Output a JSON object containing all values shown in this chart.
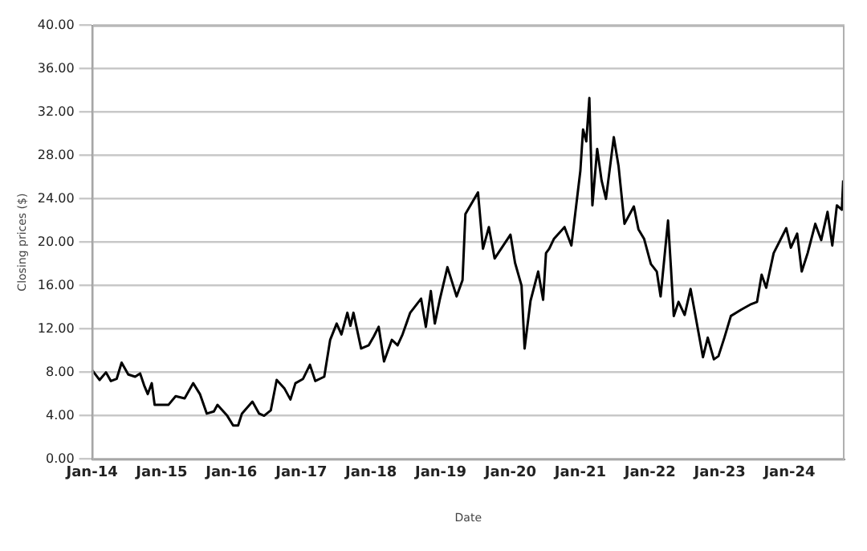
{
  "chart_data": {
    "type": "line",
    "xlabel": "Date",
    "ylabel": "Closing prices ($)",
    "x": [
      "2014-01-02",
      "2014-02-10",
      "2014-03-15",
      "2014-04-10",
      "2014-05-10",
      "2014-06-05",
      "2014-07-10",
      "2014-08-15",
      "2014-09-10",
      "2014-10-01",
      "2014-10-20",
      "2014-11-10",
      "2014-11-25",
      "2015-02-05",
      "2015-03-15",
      "2015-05-01",
      "2015-06-15",
      "2015-07-20",
      "2015-08-25",
      "2015-10-01",
      "2015-10-20",
      "2015-12-10",
      "2016-01-10",
      "2016-02-05",
      "2016-02-25",
      "2016-04-20",
      "2016-05-25",
      "2016-06-20",
      "2016-07-25",
      "2016-08-25",
      "2016-10-05",
      "2016-11-05",
      "2016-12-01",
      "2017-01-10",
      "2017-02-15",
      "2017-03-15",
      "2017-05-01",
      "2017-06-01",
      "2017-07-05",
      "2017-07-30",
      "2017-08-30",
      "2017-09-15",
      "2017-10-01",
      "2017-11-10",
      "2017-12-20",
      "2018-01-15",
      "2018-02-10",
      "2018-03-10",
      "2018-04-20",
      "2018-05-20",
      "2018-06-15",
      "2018-07-25",
      "2018-09-20",
      "2018-10-15",
      "2018-11-10",
      "2018-12-01",
      "2018-12-28",
      "2019-02-05",
      "2019-03-25",
      "2019-04-25",
      "2019-05-10",
      "2019-07-15",
      "2019-08-10",
      "2019-09-10",
      "2019-10-10",
      "2020-01-01",
      "2020-01-25",
      "2020-02-28",
      "2020-03-15",
      "2020-04-15",
      "2020-05-25",
      "2020-06-20",
      "2020-07-05",
      "2020-07-22",
      "2020-08-15",
      "2020-10-10",
      "2020-11-15",
      "2021-01-01",
      "2021-01-15",
      "2021-02-01",
      "2021-02-17",
      "2021-03-05",
      "2021-03-30",
      "2021-04-22",
      "2021-05-15",
      "2021-06-25",
      "2021-07-20",
      "2021-08-20",
      "2021-10-08",
      "2021-11-01",
      "2021-12-01",
      "2022-01-05",
      "2022-02-05",
      "2022-02-25",
      "2022-04-05",
      "2022-04-20",
      "2022-05-05",
      "2022-05-30",
      "2022-07-01",
      "2022-08-01",
      "2022-09-05",
      "2022-10-05",
      "2022-10-30",
      "2022-12-01",
      "2022-12-25",
      "2023-01-25",
      "2023-02-28",
      "2023-04-25",
      "2023-06-15",
      "2023-07-15",
      "2023-08-08",
      "2023-09-01",
      "2023-10-10",
      "2023-12-15",
      "2024-01-08",
      "2024-02-10",
      "2024-03-05",
      "2024-04-05",
      "2024-05-15",
      "2024-06-15",
      "2024-07-18",
      "2024-08-12",
      "2024-09-05",
      "2024-10-01",
      "2024-10-08"
    ],
    "series": [
      {
        "color": "#000000",
        "values": [
          8.2,
          7.3,
          8.0,
          7.2,
          7.4,
          8.9,
          7.8,
          7.6,
          7.9,
          6.8,
          6.0,
          7.0,
          5.0,
          5.0,
          5.8,
          5.6,
          7.0,
          6.0,
          4.2,
          4.4,
          5.0,
          4.0,
          3.1,
          3.1,
          4.2,
          5.3,
          4.2,
          4.0,
          4.5,
          7.3,
          6.5,
          5.5,
          7.0,
          7.4,
          8.7,
          7.2,
          7.6,
          11.0,
          12.5,
          11.5,
          13.5,
          12.3,
          13.5,
          10.2,
          10.5,
          11.3,
          12.2,
          9.0,
          11.0,
          10.5,
          11.5,
          13.5,
          14.8,
          12.2,
          15.5,
          12.5,
          14.8,
          17.7,
          15.0,
          16.5,
          22.6,
          24.6,
          19.4,
          21.4,
          18.5,
          20.7,
          18.1,
          16.0,
          10.2,
          14.6,
          17.3,
          14.7,
          19.0,
          19.4,
          20.3,
          21.4,
          19.7,
          26.6,
          30.4,
          29.3,
          33.3,
          23.4,
          28.6,
          25.7,
          24.0,
          29.7,
          27.0,
          21.7,
          23.3,
          21.2,
          20.3,
          18.0,
          17.3,
          15.0,
          22.0,
          17.7,
          13.2,
          14.5,
          13.3,
          15.7,
          12.3,
          9.4,
          11.2,
          9.2,
          9.5,
          11.2,
          13.2,
          13.8,
          14.3,
          14.5,
          17.0,
          15.8,
          19.0,
          21.3,
          19.5,
          20.8,
          17.3,
          19.0,
          21.7,
          20.2,
          22.8,
          19.7,
          23.4,
          23.0,
          25.7
        ]
      }
    ],
    "xlim": [
      "2014-01-01",
      "2024-10-15"
    ],
    "xticks": [
      {
        "value": "2014-01-01",
        "label": "Jan-14"
      },
      {
        "value": "2015-01-01",
        "label": "Jan-15"
      },
      {
        "value": "2016-01-01",
        "label": "Jan-16"
      },
      {
        "value": "2017-01-01",
        "label": "Jan-17"
      },
      {
        "value": "2018-01-01",
        "label": "Jan-18"
      },
      {
        "value": "2019-01-01",
        "label": "Jan-19"
      },
      {
        "value": "2020-01-01",
        "label": "Jan-20"
      },
      {
        "value": "2021-01-01",
        "label": "Jan-21"
      },
      {
        "value": "2022-01-01",
        "label": "Jan-22"
      },
      {
        "value": "2023-01-01",
        "label": "Jan-23"
      },
      {
        "value": "2024-01-01",
        "label": "Jan-24"
      }
    ],
    "ylim": [
      0,
      40
    ],
    "yticks": [
      {
        "value": 0,
        "label": "0.00"
      },
      {
        "value": 4,
        "label": "4.00"
      },
      {
        "value": 8,
        "label": "8.00"
      },
      {
        "value": 12,
        "label": "12.00"
      },
      {
        "value": 16,
        "label": "16.00"
      },
      {
        "value": 20,
        "label": "20.00"
      },
      {
        "value": 24,
        "label": "24.00"
      },
      {
        "value": 28,
        "label": "28.00"
      },
      {
        "value": 32,
        "label": "32.00"
      },
      {
        "value": 36,
        "label": "36.00"
      },
      {
        "value": 40,
        "label": "40.00"
      }
    ],
    "grid": "y",
    "legend": false,
    "marker": "none",
    "line_style": "solid"
  }
}
